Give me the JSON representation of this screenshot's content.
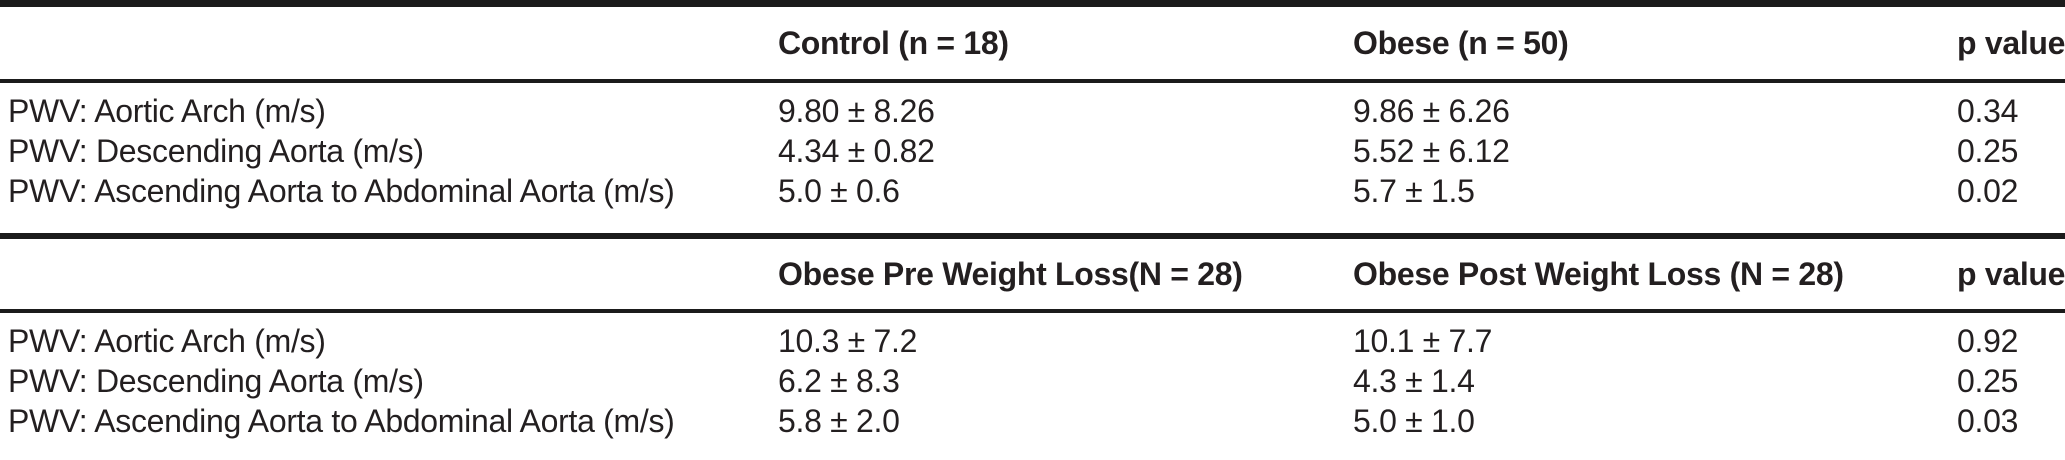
{
  "colors": {
    "background": "#ffffff",
    "text": "#231f20",
    "rule": "#1b1b1b"
  },
  "table": {
    "sections": [
      {
        "columns": [
          "",
          "Control (n = 18)",
          "Obese (n = 50)",
          "p value"
        ],
        "rows": [
          {
            "label": "PWV: Aortic Arch (m/s)",
            "values": [
              "9.80 ± 8.26",
              "9.86 ± 6.26"
            ],
            "p": "0.34"
          },
          {
            "label": "PWV: Descending Aorta (m/s)",
            "values": [
              "4.34 ± 0.82",
              "5.52 ± 6.12"
            ],
            "p": "0.25"
          },
          {
            "label": "PWV: Ascending Aorta to Abdominal Aorta (m/s)",
            "values": [
              "5.0 ± 0.6",
              "5.7 ± 1.5"
            ],
            "p": "0.02"
          }
        ]
      },
      {
        "columns": [
          "",
          "Obese Pre Weight Loss(N = 28)",
          "Obese Post Weight Loss (N = 28)",
          "p value"
        ],
        "rows": [
          {
            "label": "PWV: Aortic Arch (m/s)",
            "values": [
              "10.3 ± 7.2",
              "10.1 ± 7.7"
            ],
            "p": "0.92"
          },
          {
            "label": "PWV: Descending Aorta (m/s)",
            "values": [
              "6.2 ± 8.3",
              "4.3 ± 1.4"
            ],
            "p": "0.25"
          },
          {
            "label": "PWV: Ascending Aorta to Abdominal Aorta (m/s)",
            "values": [
              "5.8 ± 2.0",
              "5.0 ± 1.0"
            ],
            "p": "0.03"
          }
        ]
      }
    ]
  }
}
